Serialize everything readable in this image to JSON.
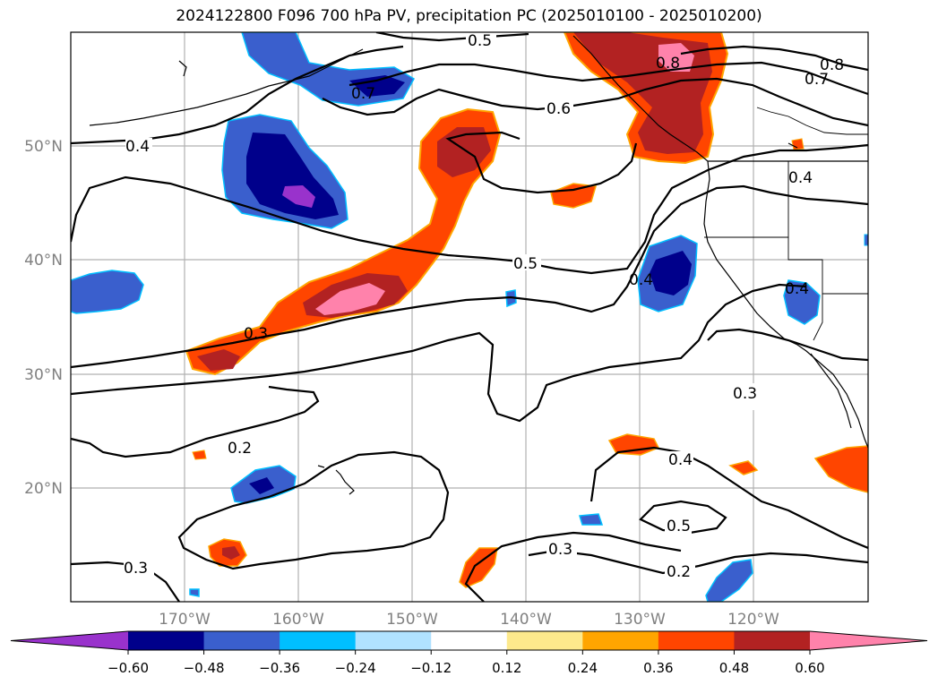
{
  "title": "2024122800 F096 700 hPa PV, precipitation PC (2025010100 - 2025010200)",
  "lat_ticks": [
    "50°N",
    "40°N",
    "30°N",
    "20°N"
  ],
  "lon_ticks": [
    "170°W",
    "160°W",
    "150°W",
    "140°W",
    "130°W",
    "120°W"
  ],
  "contour_labels": [
    "0.5",
    "0.8",
    "0.8",
    "0.7",
    "0.7",
    "0.6",
    "0.4",
    "0.4",
    "0.5",
    "0.4",
    "0.4",
    "0.3",
    "0.3",
    "0.2",
    "0.4",
    "0.5",
    "0.3",
    "0.3",
    "0.2"
  ],
  "colorbar": {
    "ticks": [
      "−0.60",
      "−0.48",
      "−0.36",
      "−0.24",
      "−0.12",
      "0.12",
      "0.24",
      "0.36",
      "0.48",
      "0.60"
    ],
    "colors": [
      "#9932cc",
      "#00008b",
      "#3a5fcd",
      "#00bfff",
      "#b0e2ff",
      "#ffffff",
      "#fde98c",
      "#ffa500",
      "#ff4500",
      "#b22222",
      "#ff82ab"
    ]
  }
}
